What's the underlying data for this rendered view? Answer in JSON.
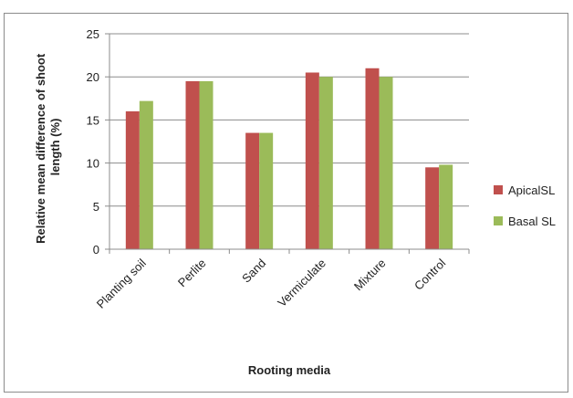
{
  "chart_data": {
    "type": "bar",
    "title": "",
    "xlabel": "Rooting media",
    "ylabel": "Relative mean difference of shoot length (%)",
    "ylabel_lines": [
      "Relative mean difference of shoot",
      "length (%)"
    ],
    "ylim": [
      0,
      25
    ],
    "yticks": [
      0,
      5,
      10,
      15,
      20,
      25
    ],
    "grid": true,
    "legend_position": "right",
    "categories": [
      "Planting soil",
      "Perlite",
      "Sand",
      "Vermiculate",
      "Mixture",
      "Control"
    ],
    "series": [
      {
        "name": "ApicalSL",
        "color": "#c0504d",
        "values": [
          16,
          19.5,
          13.5,
          20.5,
          21,
          9.5
        ]
      },
      {
        "name": "Basal SL",
        "color": "#9bbb59",
        "values": [
          17.2,
          19.5,
          13.5,
          20,
          20,
          9.8
        ]
      }
    ]
  }
}
